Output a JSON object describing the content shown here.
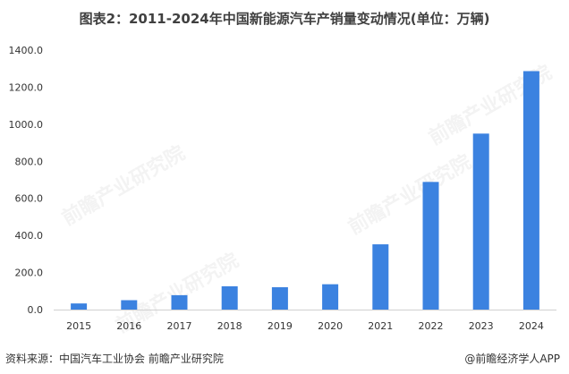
{
  "title": "图表2：2011-2024年中国新能源汽车产销量变动情况(单位：万辆)",
  "footer": {
    "source": "资料来源：中国汽车工业协会 前瞻产业研究院",
    "brand": "@前瞻经济学人APP",
    "brand_icon": "@"
  },
  "watermark": "前瞻产业研究院",
  "colors": {
    "bar": "#3B82E0",
    "axis": "#D0D0D0",
    "text": "#333333"
  },
  "chart_data": {
    "type": "bar",
    "title": "图表2：2011-2024年中国新能源汽车产销量变动情况(单位：万辆)",
    "categories": [
      "2015",
      "2016",
      "2017",
      "2018",
      "2019",
      "2020",
      "2021",
      "2022",
      "2023",
      "2024"
    ],
    "values": [
      33.1,
      50.7,
      77.7,
      125.6,
      120.6,
      136.7,
      352.1,
      688.7,
      949.5,
      1286.6
    ],
    "ylim": [
      0,
      1400
    ],
    "yticks": [
      "0.0",
      "200.0",
      "400.0",
      "600.0",
      "800.0",
      "1000.0",
      "1200.0",
      "1400.0"
    ],
    "grid": false,
    "legend": "none"
  }
}
